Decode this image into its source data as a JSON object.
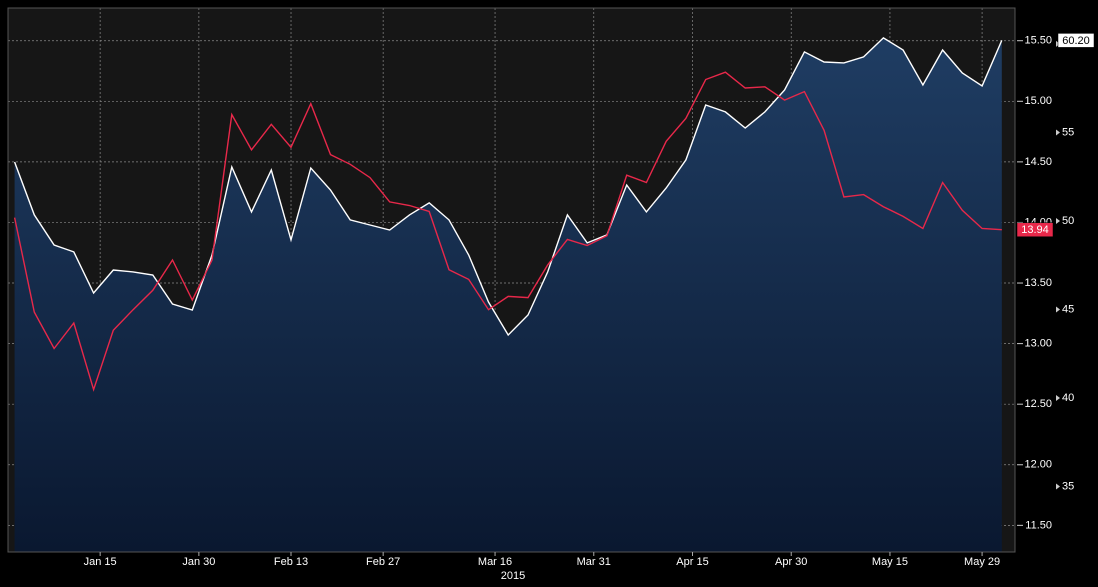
{
  "chart_data": {
    "type": "line",
    "xlabel": "2015",
    "x": [
      "2015-01-02",
      "2015-01-05",
      "2015-01-08",
      "2015-01-11",
      "2015-01-14",
      "2015-01-17",
      "2015-01-20",
      "2015-01-23",
      "2015-01-26",
      "2015-01-29",
      "2015-02-01",
      "2015-02-04",
      "2015-02-07",
      "2015-02-10",
      "2015-02-13",
      "2015-02-16",
      "2015-02-19",
      "2015-02-22",
      "2015-02-25",
      "2015-02-28",
      "2015-03-03",
      "2015-03-06",
      "2015-03-09",
      "2015-03-12",
      "2015-03-15",
      "2015-03-18",
      "2015-03-21",
      "2015-03-24",
      "2015-03-27",
      "2015-03-30",
      "2015-04-02",
      "2015-04-05",
      "2015-04-08",
      "2015-04-11",
      "2015-04-14",
      "2015-04-17",
      "2015-04-20",
      "2015-04-23",
      "2015-04-26",
      "2015-04-29",
      "2015-05-02",
      "2015-05-05",
      "2015-05-08",
      "2015-05-11",
      "2015-05-14",
      "2015-05-17",
      "2015-05-20",
      "2015-05-23",
      "2015-05-26",
      "2015-05-29",
      "2015-06-01"
    ],
    "xlim": [
      "2015-01-01",
      "2015-06-03"
    ],
    "xticks": [
      {
        "value": "2015-01-15",
        "label": "Jan 15"
      },
      {
        "value": "2015-01-30",
        "label": "Jan 30"
      },
      {
        "value": "2015-02-13",
        "label": "Feb 13"
      },
      {
        "value": "2015-02-27",
        "label": "Feb 27"
      },
      {
        "value": "2015-03-16",
        "label": "Mar 16"
      },
      {
        "value": "2015-03-31",
        "label": "Mar 31"
      },
      {
        "value": "2015-04-15",
        "label": "Apr 15"
      },
      {
        "value": "2015-04-30",
        "label": "Apr 30"
      },
      {
        "value": "2015-05-15",
        "label": "May 15"
      },
      {
        "value": "2015-05-29",
        "label": "May 29"
      }
    ],
    "ylim": [
      11.28,
      15.77
    ],
    "yticks": [
      {
        "value": 11.5,
        "label": "11.50"
      },
      {
        "value": 12,
        "label": "12.00"
      },
      {
        "value": 12.5,
        "label": "12.50"
      },
      {
        "value": 13,
        "label": "13.00"
      },
      {
        "value": 13.5,
        "label": "13.50"
      },
      {
        "value": 14,
        "label": "14.00"
      },
      {
        "value": 14.5,
        "label": "14.50"
      },
      {
        "value": 15,
        "label": "15.00"
      },
      {
        "value": 15.5,
        "label": "15.50"
      }
    ],
    "y2lim": [
      31.3,
      62.03
    ],
    "y2ticks": [
      35,
      40,
      45,
      50,
      55,
      60
    ],
    "grid": true,
    "series": [
      {
        "name": null,
        "color": "#ffffff",
        "axis": "y2",
        "area": true,
        "last_value_label": "60.20",
        "values": [
          53.33,
          50.34,
          48.64,
          48.25,
          45.93,
          47.23,
          47.12,
          46.95,
          45.31,
          44.97,
          48.08,
          53.05,
          50.51,
          52.88,
          48.93,
          52.99,
          51.75,
          50.06,
          49.77,
          49.49,
          50.34,
          51.02,
          50.06,
          48.08,
          45.42,
          43.56,
          44.69,
          47.12,
          50.34,
          48.76,
          49.21,
          52.03,
          50.51,
          51.86,
          53.45,
          56.55,
          56.16,
          55.25,
          56.16,
          57.4,
          59.55,
          58.98,
          58.93,
          59.27,
          60.34,
          59.66,
          57.68,
          59.66,
          58.36,
          57.63,
          60.2
        ]
      },
      {
        "name": null,
        "color": "#e8284a",
        "axis": "y",
        "area": false,
        "last_value_label": "13.94",
        "values": [
          14.04,
          13.26,
          12.96,
          13.17,
          12.62,
          13.11,
          13.28,
          13.44,
          13.69,
          13.36,
          13.69,
          14.89,
          14.6,
          14.81,
          14.62,
          14.98,
          14.56,
          14.48,
          14.37,
          14.17,
          14.14,
          14.09,
          13.61,
          13.53,
          13.28,
          13.39,
          13.38,
          13.65,
          13.86,
          13.81,
          13.89,
          14.39,
          14.33,
          14.67,
          14.86,
          15.18,
          15.24,
          15.11,
          15.12,
          15.01,
          15.08,
          14.76,
          14.21,
          14.23,
          14.13,
          14.05,
          13.95,
          14.33,
          14.1,
          13.95,
          13.94
        ]
      }
    ]
  }
}
